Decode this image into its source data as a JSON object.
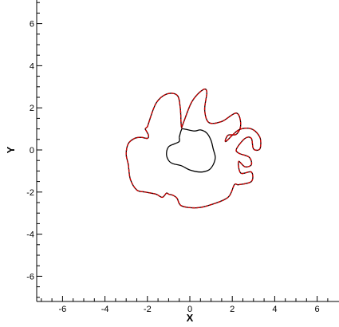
{
  "chart_data": {
    "type": "line",
    "title": "",
    "xlabel": "X",
    "ylabel": "Y",
    "xlim": [
      -7.3,
      6.9
    ],
    "ylim": [
      -7.3,
      7.0
    ],
    "x_ticks": [
      "-6",
      "-4",
      "-2",
      "0",
      "2",
      "4",
      "6"
    ],
    "y_ticks": [
      "6",
      "4",
      "2",
      "0",
      "-2",
      "-4",
      "-6"
    ],
    "grid": false,
    "series": [
      {
        "color": "#000000",
        "style": "solid",
        "x": [
          -0.5,
          -0.4,
          -0.3,
          0.2,
          0.5,
          0.8,
          1.0,
          1.1,
          1.2,
          1.1,
          0.9,
          0.5,
          0.0,
          -0.4,
          -0.8,
          -1.0,
          -1.1,
          -1.0,
          -0.7,
          -0.5,
          -0.5
        ],
        "y": [
          0.6,
          0.95,
          1.0,
          0.9,
          0.95,
          0.8,
          0.45,
          0.05,
          -0.35,
          -0.7,
          -0.95,
          -1.05,
          -0.95,
          -0.75,
          -0.65,
          -0.5,
          -0.2,
          0.15,
          0.3,
          0.4,
          0.6
        ]
      },
      {
        "color": "#000000",
        "style": "solid",
        "x": [
          -2.0,
          -1.6,
          -1.1,
          -0.6,
          -0.45,
          -0.4,
          -0.3,
          0.1,
          0.6,
          0.8,
          0.7,
          0.9,
          1.5,
          2.2,
          2.4,
          2.2,
          1.8,
          1.7,
          2.3,
          2.9,
          3.3,
          3.3,
          3.0,
          2.9,
          2.6,
          2.2,
          2.3,
          2.8,
          2.9,
          2.6,
          2.3,
          2.4,
          2.9,
          2.9,
          2.3,
          2.1,
          1.8,
          1.0,
          0.3,
          -0.4,
          -0.6,
          -0.8,
          -1.0,
          -1.1,
          -1.3,
          -1.6,
          -2.1,
          -2.5,
          -2.8,
          -2.9,
          -3.0,
          -2.9,
          -2.6,
          -2.3,
          -2.0,
          -1.95,
          -2.05,
          -2.1,
          -2.0
        ],
        "y": [
          1.1,
          2.2,
          2.65,
          2.6,
          2.0,
          1.1,
          1.3,
          2.3,
          2.85,
          2.75,
          1.9,
          1.3,
          1.35,
          1.75,
          1.2,
          0.75,
          0.7,
          0.4,
          0.95,
          1.0,
          0.6,
          0.05,
          0.05,
          0.55,
          0.55,
          0.05,
          -0.15,
          -0.35,
          -0.7,
          -0.8,
          -0.55,
          -1.1,
          -1.05,
          -1.5,
          -1.65,
          -1.65,
          -2.25,
          -2.6,
          -2.75,
          -2.65,
          -2.3,
          -2.15,
          -2.1,
          -2.05,
          -2.25,
          -2.1,
          -2.0,
          -1.9,
          -1.4,
          -0.7,
          -0.2,
          0.3,
          0.55,
          0.6,
          0.55,
          0.7,
          0.9,
          1.0,
          1.1
        ]
      },
      {
        "color": "#cc0000",
        "style": "dashed",
        "x": [
          -2.0,
          -1.6,
          -1.1,
          -0.6,
          -0.45,
          -0.4,
          -0.3,
          0.1,
          0.6,
          0.8,
          0.7,
          0.9,
          1.5,
          2.2,
          2.4,
          2.2,
          1.8,
          1.7,
          2.3,
          2.9,
          3.3,
          3.3,
          3.0,
          2.9,
          2.6,
          2.2,
          2.3,
          2.8,
          2.9,
          2.6,
          2.3,
          2.4,
          2.9,
          2.9,
          2.3,
          2.1,
          1.8,
          1.0,
          0.3,
          -0.4,
          -0.6,
          -0.8,
          -1.0,
          -1.1,
          -1.3,
          -1.6,
          -2.1,
          -2.5,
          -2.8,
          -2.9,
          -3.0,
          -2.9,
          -2.6,
          -2.3,
          -2.0,
          -1.95,
          -2.05,
          -2.1,
          -2.0
        ],
        "y": [
          1.1,
          2.2,
          2.65,
          2.6,
          2.0,
          1.1,
          1.3,
          2.3,
          2.85,
          2.75,
          1.9,
          1.3,
          1.35,
          1.75,
          1.2,
          0.75,
          0.7,
          0.4,
          0.95,
          1.0,
          0.6,
          0.05,
          0.05,
          0.55,
          0.55,
          0.05,
          -0.15,
          -0.35,
          -0.7,
          -0.8,
          -0.55,
          -1.1,
          -1.05,
          -1.5,
          -1.65,
          -1.65,
          -2.25,
          -2.6,
          -2.75,
          -2.65,
          -2.3,
          -2.15,
          -2.1,
          -2.05,
          -2.25,
          -2.1,
          -2.0,
          -1.9,
          -1.4,
          -0.7,
          -0.2,
          0.3,
          0.55,
          0.6,
          0.55,
          0.7,
          0.9,
          1.0,
          1.1
        ]
      }
    ]
  }
}
